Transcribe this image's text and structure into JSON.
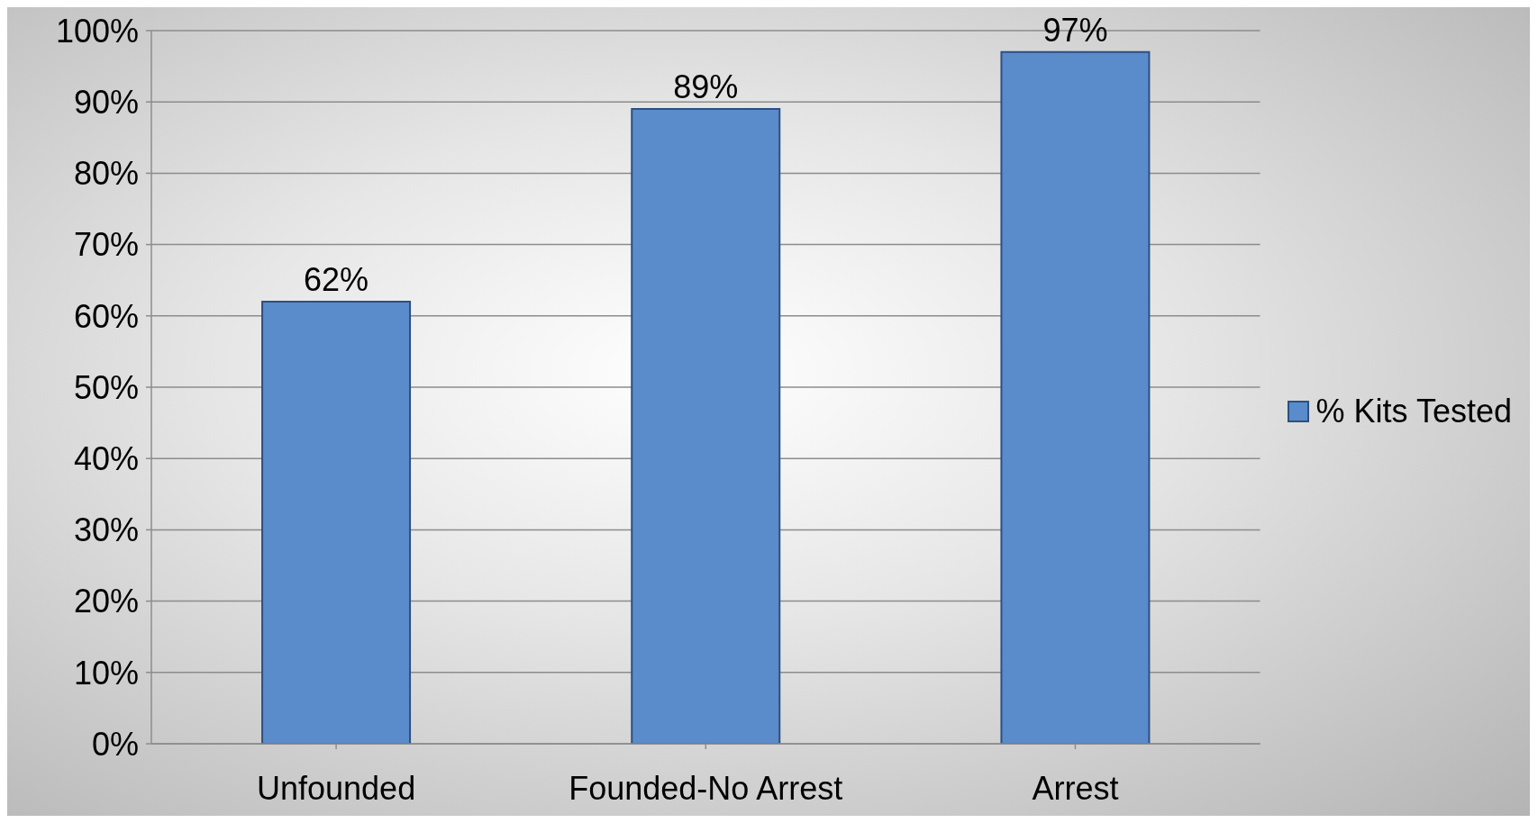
{
  "chart_data": {
    "type": "bar",
    "categories": [
      "Unfounded",
      "Founded-No Arrest",
      "Arrest"
    ],
    "series": [
      {
        "name": "% Kits Tested",
        "color": "#5a8bcb",
        "values": [
          62,
          89,
          97
        ],
        "value_labels": [
          "62%",
          "89%",
          "97%"
        ]
      }
    ],
    "ylim": [
      0,
      100
    ],
    "yticks": [
      {
        "value": 0,
        "label": "0%"
      },
      {
        "value": 10,
        "label": "10%"
      },
      {
        "value": 20,
        "label": "20%"
      },
      {
        "value": 30,
        "label": "30%"
      },
      {
        "value": 40,
        "label": "40%"
      },
      {
        "value": 50,
        "label": "50%"
      },
      {
        "value": 60,
        "label": "60%"
      },
      {
        "value": 70,
        "label": "70%"
      },
      {
        "value": 80,
        "label": "80%"
      },
      {
        "value": 90,
        "label": "90%"
      },
      {
        "value": 100,
        "label": "100%"
      }
    ],
    "grid": "y",
    "legend": "right"
  }
}
